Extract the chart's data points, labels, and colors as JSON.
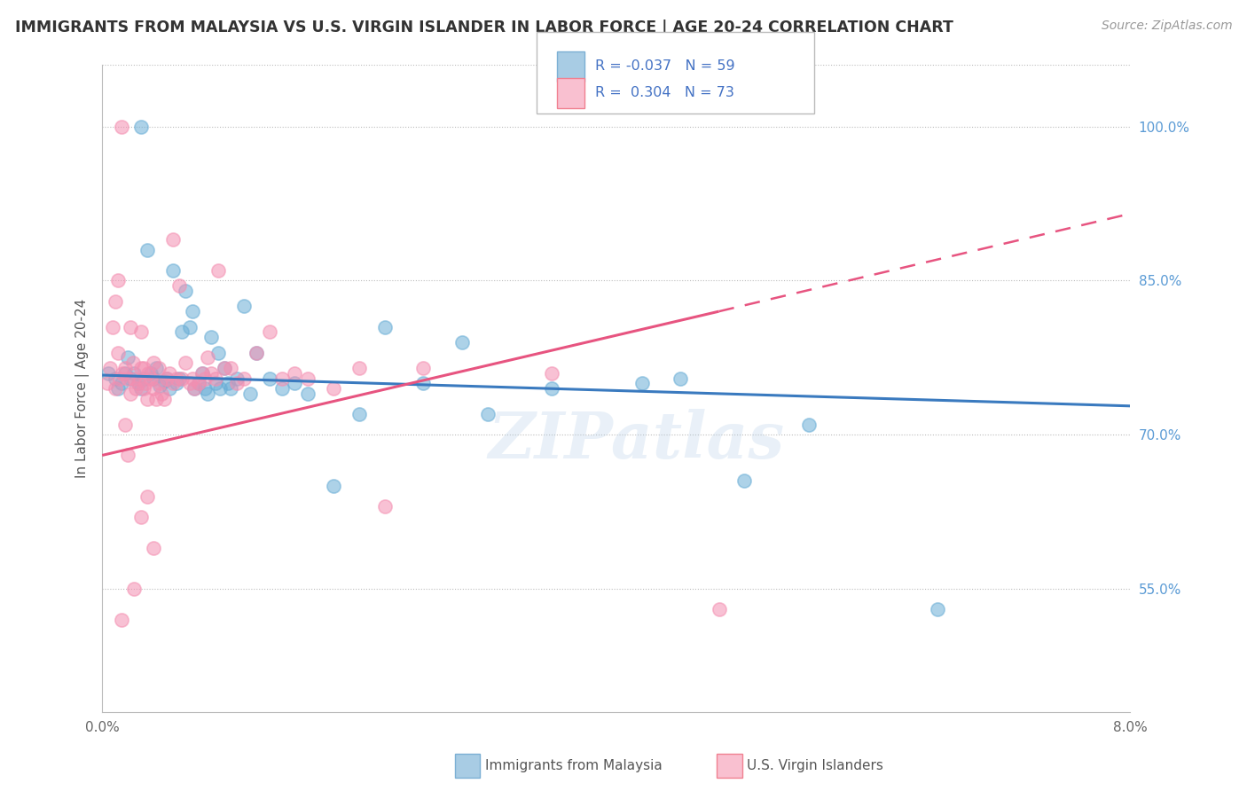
{
  "title": "IMMIGRANTS FROM MALAYSIA VS U.S. VIRGIN ISLANDER IN LABOR FORCE | AGE 20-24 CORRELATION CHART",
  "source": "Source: ZipAtlas.com",
  "ylabel": "In Labor Force | Age 20-24",
  "xlim": [
    0.0,
    8.0
  ],
  "ylim": [
    43.0,
    106.0
  ],
  "yticks": [
    55.0,
    70.0,
    85.0,
    100.0
  ],
  "malaysia_color": "#6aaed6",
  "virgin_color": "#f48fb1",
  "malaysia_line_color": "#3a7abf",
  "virgin_line_color": "#e75480",
  "watermark": "ZIPatlas",
  "malaysia_points_x": [
    0.05,
    0.1,
    0.12,
    0.15,
    0.18,
    0.2,
    0.22,
    0.25,
    0.28,
    0.3,
    0.32,
    0.35,
    0.38,
    0.4,
    0.42,
    0.45,
    0.48,
    0.5,
    0.52,
    0.55,
    0.58,
    0.6,
    0.62,
    0.65,
    0.68,
    0.7,
    0.72,
    0.75,
    0.78,
    0.8,
    0.82,
    0.85,
    0.88,
    0.9,
    0.92,
    0.95,
    0.98,
    1.0,
    1.05,
    1.1,
    1.15,
    1.2,
    1.3,
    1.4,
    1.5,
    1.6,
    1.8,
    2.0,
    2.2,
    2.5,
    2.8,
    3.0,
    3.5,
    4.2,
    4.5,
    5.0,
    5.5,
    6.5,
    0.3
  ],
  "malaysia_points_y": [
    76.0,
    75.5,
    74.5,
    75.0,
    76.0,
    77.5,
    75.5,
    76.0,
    75.0,
    74.5,
    75.5,
    88.0,
    76.0,
    75.5,
    76.5,
    74.8,
    75.2,
    75.5,
    74.5,
    86.0,
    75.0,
    75.5,
    80.0,
    84.0,
    80.5,
    82.0,
    74.5,
    75.0,
    76.0,
    74.5,
    74.0,
    79.5,
    75.0,
    78.0,
    74.5,
    76.5,
    75.0,
    74.5,
    75.5,
    82.5,
    74.0,
    78.0,
    75.5,
    74.5,
    75.0,
    74.0,
    65.0,
    72.0,
    80.5,
    75.0,
    79.0,
    72.0,
    74.5,
    75.0,
    75.5,
    65.5,
    71.0,
    53.0,
    100.0
  ],
  "virgin_points_x": [
    0.04,
    0.06,
    0.08,
    0.1,
    0.12,
    0.14,
    0.15,
    0.16,
    0.18,
    0.2,
    0.22,
    0.22,
    0.24,
    0.25,
    0.26,
    0.28,
    0.3,
    0.3,
    0.32,
    0.32,
    0.34,
    0.35,
    0.36,
    0.38,
    0.4,
    0.4,
    0.42,
    0.44,
    0.45,
    0.46,
    0.48,
    0.5,
    0.52,
    0.55,
    0.55,
    0.58,
    0.6,
    0.62,
    0.65,
    0.68,
    0.7,
    0.72,
    0.75,
    0.78,
    0.8,
    0.82,
    0.85,
    0.88,
    0.9,
    0.95,
    1.0,
    1.05,
    1.1,
    1.2,
    1.3,
    1.4,
    1.5,
    1.6,
    1.8,
    2.0,
    2.2,
    2.5,
    0.15,
    0.2,
    0.25,
    0.3,
    0.35,
    0.4,
    0.1,
    0.12,
    0.18,
    3.5,
    4.8
  ],
  "virgin_points_y": [
    75.0,
    76.5,
    80.5,
    74.5,
    78.0,
    75.5,
    100.0,
    76.0,
    76.5,
    75.5,
    74.0,
    80.5,
    77.0,
    75.5,
    74.5,
    75.0,
    76.5,
    80.0,
    74.5,
    76.5,
    75.0,
    73.5,
    76.0,
    75.5,
    74.5,
    77.0,
    73.5,
    76.5,
    75.0,
    74.0,
    73.5,
    75.5,
    76.0,
    75.0,
    89.0,
    75.5,
    84.5,
    75.5,
    77.0,
    75.0,
    75.5,
    74.5,
    75.0,
    76.0,
    75.5,
    77.5,
    76.0,
    75.5,
    86.0,
    76.5,
    76.5,
    75.0,
    75.5,
    78.0,
    80.0,
    75.5,
    76.0,
    75.5,
    74.5,
    76.5,
    63.0,
    76.5,
    52.0,
    68.0,
    55.0,
    62.0,
    64.0,
    59.0,
    83.0,
    85.0,
    71.0,
    76.0,
    53.0
  ],
  "malaysia_line": {
    "x0": 0.0,
    "x1": 8.0,
    "y0": 75.8,
    "y1": 72.8
  },
  "virgin_line_solid": {
    "x0": 0.0,
    "x1": 4.8,
    "y0": 68.0,
    "y1": 82.0
  },
  "virgin_line_dashed": {
    "x0": 4.8,
    "x1": 8.0,
    "y0": 82.0,
    "y1": 91.5
  }
}
